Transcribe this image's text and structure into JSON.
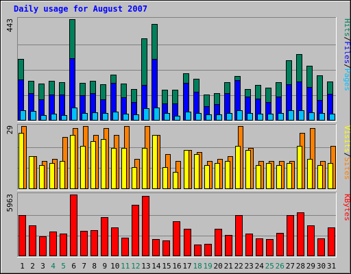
{
  "chart_data": {
    "type": "bar",
    "title": "Daily usage for August 2007",
    "categories": [
      "1",
      "2",
      "3",
      "4",
      "5",
      "6",
      "7",
      "8",
      "9",
      "10",
      "11",
      "12",
      "13",
      "14",
      "15",
      "16",
      "17",
      "18",
      "19",
      "20",
      "21",
      "22",
      "23",
      "24",
      "25",
      "26",
      "27",
      "28",
      "29",
      "30",
      "31"
    ],
    "weekend_days": [
      4,
      5,
      11,
      12,
      18,
      19,
      25,
      26
    ],
    "colors": {
      "hits": "#00805c",
      "files": "#0000ff",
      "pages": "#00c0ff",
      "visits": "#ff8000",
      "sites": "#ffff00",
      "kbytes": "#ff0000",
      "weekday_label": "#000000",
      "weekend_label": "#00805c",
      "title": "#0000ff",
      "background": "#c0c0c0",
      "grid": "#808080"
    },
    "panels": [
      {
        "name": "hits-files-pages",
        "max_label": "443",
        "ymax": 443,
        "legend": [
          {
            "text": "Hits",
            "color": "#00805c"
          },
          {
            "text": "/",
            "color": "#000000"
          },
          {
            "text": "Files",
            "color": "#0000ff"
          },
          {
            "text": "/",
            "color": "#000000"
          },
          {
            "text": "Pages",
            "color": "#00c0ff"
          }
        ],
        "series": [
          {
            "name": "Hits",
            "color": "#00805c",
            "values": [
              268,
              175,
              163,
              174,
              168,
              443,
              166,
              174,
              160,
              201,
              161,
              138,
              358,
              422,
              135,
              135,
              207,
              182,
              115,
              120,
              168,
              195,
              137,
              155,
              145,
              168,
              262,
              291,
              238,
              198,
              172
            ]
          },
          {
            "name": "Files",
            "color": "#0000ff",
            "values": [
              179,
              119,
              94,
              114,
              114,
              271,
              112,
              119,
              94,
              164,
              103,
              81,
              157,
              268,
              76,
              76,
              166,
              125,
              62,
              71,
              120,
              176,
              104,
              95,
              81,
              105,
              158,
              171,
              146,
              91,
              118
            ]
          },
          {
            "name": "Pages",
            "color": "#00c0ff",
            "values": [
              45,
              43,
              24,
              30,
              24,
              58,
              34,
              37,
              33,
              40,
              29,
              26,
              54,
              58,
              32,
              22,
              40,
              33,
              28,
              27,
              32,
              45,
              34,
              30,
              31,
              34,
              45,
              45,
              35,
              34,
              29
            ]
          }
        ]
      },
      {
        "name": "visits-sites",
        "max_label": "29",
        "ymax": 29,
        "legend": [
          {
            "text": "Visits",
            "color": "#ffff00"
          },
          {
            "text": "/",
            "color": "#000000"
          },
          {
            "text": "Sites",
            "color": "#ff8000"
          }
        ],
        "series": [
          {
            "name": "Visits",
            "color": "#ff8000",
            "values": [
              29,
              15,
              13,
              14,
              24,
              28,
              29,
              25,
              28,
              25,
              29,
              14,
              29,
              25,
              16,
              13,
              18,
              17,
              13,
              14,
              15,
              29,
              19,
              13,
              13,
              13,
              13,
              26,
              28,
              13,
              20
            ]
          },
          {
            "name": "Sites",
            "color": "#ffff00",
            "values": [
              26,
              15,
              11,
              12,
              13,
              25,
              20,
              22,
              23,
              19,
              19,
              10,
              19,
              25,
              10,
              8,
              18,
              16,
              11,
              12,
              13,
              20,
              18,
              11,
              12,
              11,
              12,
              20,
              14,
              11,
              12
            ]
          }
        ]
      },
      {
        "name": "kbytes",
        "max_label": "5963",
        "ymax": 5963,
        "legend": [
          {
            "text": "KBytes",
            "color": "#ff0000"
          }
        ],
        "series": [
          {
            "name": "KBytes",
            "color": "#ff0000",
            "values": [
              4000,
              2960,
              1920,
              2400,
              2180,
              5963,
              2420,
              2540,
              3780,
              2780,
              1760,
              4960,
              5860,
              1680,
              1540,
              3360,
              2680,
              1120,
              1220,
              2680,
              2040,
              3960,
              2200,
              1720,
              1680,
              2240,
              3980,
              4240,
              2960,
              1740,
              2800
            ]
          }
        ]
      }
    ]
  }
}
